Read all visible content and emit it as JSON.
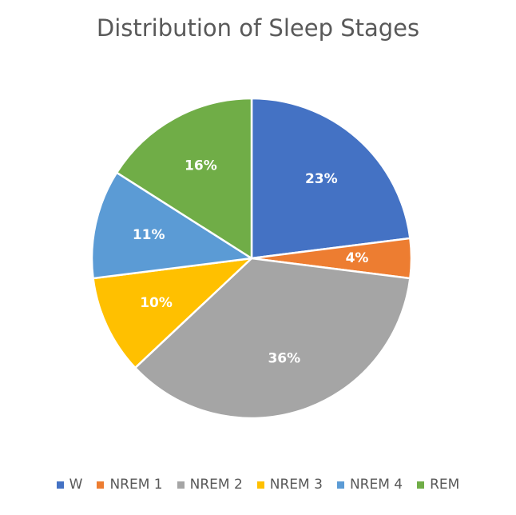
{
  "chart_data": {
    "type": "pie",
    "title": "Distribution of Sleep Stages",
    "legend_position": "bottom",
    "slices": [
      {
        "name": "W",
        "value": 23,
        "label": "23%",
        "color": "#4472C4"
      },
      {
        "name": "NREM 1",
        "value": 4,
        "label": "4%",
        "color": "#ED7D31"
      },
      {
        "name": "NREM 2",
        "value": 36,
        "label": "36%",
        "color": "#A5A5A5"
      },
      {
        "name": "NREM 3",
        "value": 10,
        "label": "10%",
        "color": "#FFC000"
      },
      {
        "name": "NREM 4",
        "value": 11,
        "label": "11%",
        "color": "#5B9BD5"
      },
      {
        "name": "REM",
        "value": 16,
        "label": "16%",
        "color": "#70AD47"
      }
    ]
  }
}
